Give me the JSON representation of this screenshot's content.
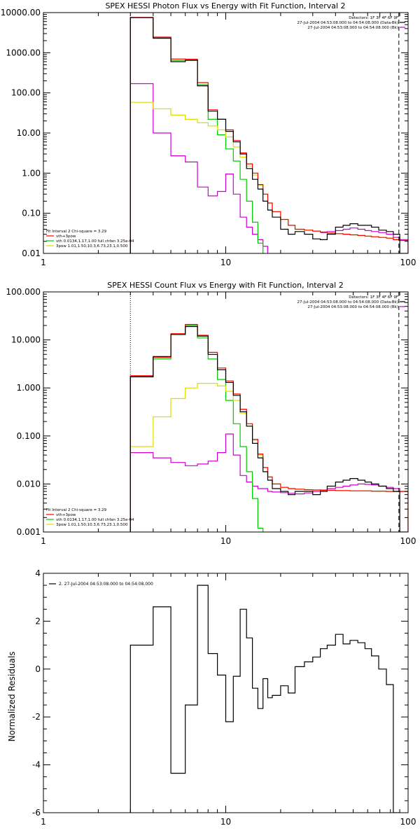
{
  "chart_data": [
    {
      "type": "line",
      "step": true,
      "title": "SPEX HESSI Photon Flux vs Energy with Fit Function, Interval 2",
      "xscale": "log",
      "yscale": "log",
      "xlim": [
        1,
        100
      ],
      "ylim": [
        0.01,
        10000
      ],
      "xticks": [
        1,
        10,
        100
      ],
      "xtick_labels": [
        "1",
        "10",
        "100"
      ],
      "yticks": [
        0.01,
        0.1,
        1,
        10,
        100,
        1000,
        10000
      ],
      "ytick_labels": [
        "0.01",
        "0.10",
        "1.00",
        "10.00",
        "100.00",
        "1000.00",
        "10000.00"
      ],
      "vline_dotted": 3,
      "vline_dashed": 89,
      "legend_topright": [
        {
          "text": "Detectors: 1F 3F 4F 6F 9F",
          "color": ""
        },
        {
          "text": "27-Jul-2004 04:53:08.000 to 04:54:08.000 (Data-Bk)",
          "color": "#000000"
        },
        {
          "text": "27-Jul-2004 04:53:08.000 to 04:54:08.000 (Bk)",
          "color": "#cc00cc"
        }
      ],
      "legend_bottomleft": [
        {
          "text": "Fit Interval 2   Chi-square = 3.29",
          "color": ""
        },
        {
          "text": "vth+3pow",
          "color": "#ff0000"
        },
        {
          "text": "vth 0.0134,1.17,1.00  full chfan 3.25e-04",
          "color": "#00cc00"
        },
        {
          "text": "3pow 1.01,1.50,10.3,6.73,23.1,0.500",
          "color": "#dddd00"
        }
      ],
      "edges": [
        3,
        4,
        5,
        6,
        7,
        8,
        9,
        10,
        11,
        12,
        13,
        14,
        15,
        16,
        17,
        18,
        20,
        22,
        24,
        27,
        30,
        33,
        36,
        40,
        44,
        48,
        53,
        58,
        63,
        69,
        76,
        83,
        90,
        100
      ],
      "series": [
        {
          "color": "#cc00cc",
          "values": [
            170,
            10,
            2.7,
            1.9,
            0.45,
            0.27,
            0.35,
            0.95,
            0.3,
            0.08,
            0.045,
            0.03,
            0.022,
            0.015,
            null,
            null,
            null,
            null,
            null,
            null,
            null,
            0.033,
            0.035,
            0.037,
            0.04,
            0.043,
            0.04,
            0.037,
            0.035,
            0.033,
            0.03,
            0.025,
            0.022
          ]
        },
        {
          "color": "#00cc00",
          "values": [
            7500,
            2400,
            650,
            650,
            160,
            22,
            9,
            4,
            2,
            0.7,
            0.2,
            0.06,
            0.018,
            null,
            null,
            null,
            null,
            null,
            null,
            null,
            null,
            null,
            null,
            null,
            null,
            null,
            null,
            null,
            null,
            null,
            null,
            null,
            null
          ]
        },
        {
          "color": "#dddd00",
          "values": [
            58,
            40,
            28,
            22,
            18,
            15,
            12,
            8,
            4.5,
            2.5,
            1.5,
            0.9,
            0.5,
            0.3,
            0.18,
            0.11,
            0.07,
            0.05,
            0.04,
            0.038,
            0.036,
            0.034,
            0.032,
            0.031,
            0.03,
            0.029,
            0.028,
            0.027,
            0.026,
            0.025,
            0.024,
            0.022,
            0.021
          ]
        },
        {
          "color": "#ff0000",
          "values": [
            7600,
            2450,
            700,
            690,
            180,
            38,
            22,
            12,
            6.5,
            3.2,
            1.7,
            1.0,
            0.52,
            0.3,
            0.18,
            0.11,
            0.07,
            0.05,
            0.04,
            0.038,
            0.036,
            0.034,
            0.032,
            0.031,
            0.03,
            0.029,
            0.028,
            0.027,
            0.026,
            0.025,
            0.024,
            0.022,
            0.021
          ]
        },
        {
          "color": "#000000",
          "values": [
            7500,
            2300,
            600,
            650,
            150,
            35,
            22,
            11,
            6,
            3,
            1.3,
            0.7,
            0.4,
            0.2,
            0.12,
            0.08,
            0.04,
            0.03,
            0.035,
            0.03,
            0.023,
            0.022,
            0.03,
            0.045,
            0.05,
            0.055,
            0.05,
            0.05,
            0.045,
            0.038,
            0.035,
            0.03,
            0.01
          ]
        }
      ]
    },
    {
      "type": "line",
      "step": true,
      "title": "SPEX HESSI Count Flux vs Energy with Fit Function, Interval 2",
      "xscale": "log",
      "yscale": "log",
      "xlim": [
        1,
        100
      ],
      "ylim": [
        0.001,
        100
      ],
      "xticks": [
        1,
        10,
        100
      ],
      "xtick_labels": [
        "1",
        "10",
        "100"
      ],
      "yticks": [
        0.001,
        0.01,
        0.1,
        1,
        10,
        100
      ],
      "ytick_labels": [
        "0.001",
        "0.010",
        "0.100",
        "1.000",
        "10.000",
        "100.000"
      ],
      "vline_dotted": 3,
      "vline_dashed": 89,
      "legend_topright": [
        {
          "text": "Detectors: 1F 3F 4F 6F 9F",
          "color": ""
        },
        {
          "text": "27-Jul-2004 04:53:08.000 to 04:54:08.000 (Data-Bk)",
          "color": "#000000"
        },
        {
          "text": "27-Jul-2004 04:53:08.000 to 04:54:08.000 (Bk)",
          "color": "#cc00cc"
        }
      ],
      "legend_bottomleft": [
        {
          "text": "Fit Interval 2   Chi-square = 3.29",
          "color": ""
        },
        {
          "text": "vth+3pow",
          "color": "#ff0000"
        },
        {
          "text": "vth 0.0134,1.17,1.00  full chfan 3.25e-04",
          "color": "#00cc00"
        },
        {
          "text": "3pow 1.01,1.50,10.3,6.73,23.1,0.500",
          "color": "#dddd00"
        }
      ],
      "edges": [
        3,
        4,
        5,
        6,
        7,
        8,
        9,
        10,
        11,
        12,
        13,
        14,
        15,
        16,
        17,
        18,
        20,
        22,
        24,
        27,
        30,
        33,
        36,
        40,
        44,
        48,
        53,
        58,
        63,
        69,
        76,
        83,
        90,
        100
      ],
      "series": [
        {
          "color": "#cc00cc",
          "values": [
            0.045,
            0.035,
            0.028,
            0.024,
            0.026,
            0.03,
            0.045,
            0.11,
            0.04,
            0.015,
            0.011,
            0.009,
            0.008,
            0.008,
            0.007,
            0.0068,
            0.0066,
            0.0064,
            0.0062,
            0.0065,
            0.007,
            0.0075,
            0.008,
            0.0085,
            0.009,
            0.0095,
            0.01,
            0.0098,
            0.0095,
            0.009,
            0.0085,
            0.008,
            0.007
          ]
        },
        {
          "color": "#00cc00",
          "values": [
            1.75,
            4,
            13,
            20,
            11,
            4,
            1.5,
            0.55,
            0.18,
            0.06,
            0.018,
            0.005,
            0.0012,
            null,
            null,
            null,
            null,
            null,
            null,
            null,
            null,
            null,
            null,
            null,
            null,
            null,
            null,
            null,
            null,
            null,
            null,
            null,
            null
          ]
        },
        {
          "color": "#dddd00",
          "values": [
            0.06,
            0.25,
            0.6,
            1.0,
            1.25,
            1.25,
            1.1,
            0.85,
            0.55,
            0.3,
            0.16,
            0.08,
            0.04,
            0.022,
            0.014,
            0.01,
            0.0085,
            0.008,
            0.0078,
            0.0076,
            0.0075,
            0.0074,
            0.0074,
            0.0073,
            0.0073,
            0.0072,
            0.0072,
            0.0072,
            0.0071,
            0.0071,
            0.007,
            0.007,
            0.007
          ]
        },
        {
          "color": "#ff0000",
          "values": [
            1.8,
            4.3,
            13.5,
            21,
            12.5,
            5.5,
            2.6,
            1.4,
            0.75,
            0.36,
            0.18,
            0.085,
            0.042,
            0.022,
            0.014,
            0.01,
            0.0085,
            0.008,
            0.0078,
            0.0076,
            0.0075,
            0.0074,
            0.0074,
            0.0073,
            0.0073,
            0.0072,
            0.0072,
            0.0072,
            0.0071,
            0.0071,
            0.007,
            0.007,
            0.007
          ]
        },
        {
          "color": "#000000",
          "values": [
            1.7,
            4.5,
            13,
            19,
            12,
            5,
            2.4,
            1.3,
            0.7,
            0.32,
            0.16,
            0.07,
            0.035,
            0.018,
            0.012,
            0.008,
            0.007,
            0.006,
            0.007,
            0.007,
            0.006,
            0.007,
            0.009,
            0.011,
            0.012,
            0.013,
            0.012,
            0.011,
            0.01,
            0.009,
            0.008,
            0.007,
            0.001
          ]
        }
      ]
    },
    {
      "type": "line",
      "step": true,
      "title": "",
      "xscale": "log",
      "yscale": "linear",
      "xlim": [
        1,
        100
      ],
      "ylim": [
        -6,
        4
      ],
      "xticks": [
        1,
        10,
        100
      ],
      "xtick_labels": [
        "1",
        "10",
        "100"
      ],
      "yticks": [
        -6,
        -4,
        -2,
        0,
        2,
        4
      ],
      "ytick_labels": [
        "-6",
        "-4",
        "-2",
        "0",
        "2",
        "4"
      ],
      "ylabel": "Normalized Residuals",
      "legend_topleft": [
        {
          "text": "2. 27-Jul-2004 04:53:08.000 to 04:54:08.000",
          "color": "#000000"
        }
      ],
      "edges": [
        3,
        4,
        5,
        6,
        7,
        8,
        9,
        10,
        11,
        12,
        13,
        14,
        15,
        16,
        17,
        18,
        20,
        22,
        24,
        27,
        30,
        33,
        36,
        40,
        44,
        48,
        53,
        58,
        63,
        69,
        76,
        83,
        90
      ],
      "series": [
        {
          "color": "#000000",
          "values": [
            1.0,
            2.6,
            -4.35,
            -1.5,
            3.5,
            0.65,
            -0.25,
            -2.2,
            -0.3,
            2.5,
            1.3,
            -0.8,
            -1.65,
            -0.4,
            -1.2,
            -1.1,
            -0.7,
            -1.0,
            0.1,
            0.3,
            0.5,
            0.85,
            1.0,
            1.45,
            1.05,
            1.2,
            1.1,
            0.85,
            0.55,
            0.0,
            -0.65,
            -6.0
          ]
        }
      ]
    }
  ]
}
